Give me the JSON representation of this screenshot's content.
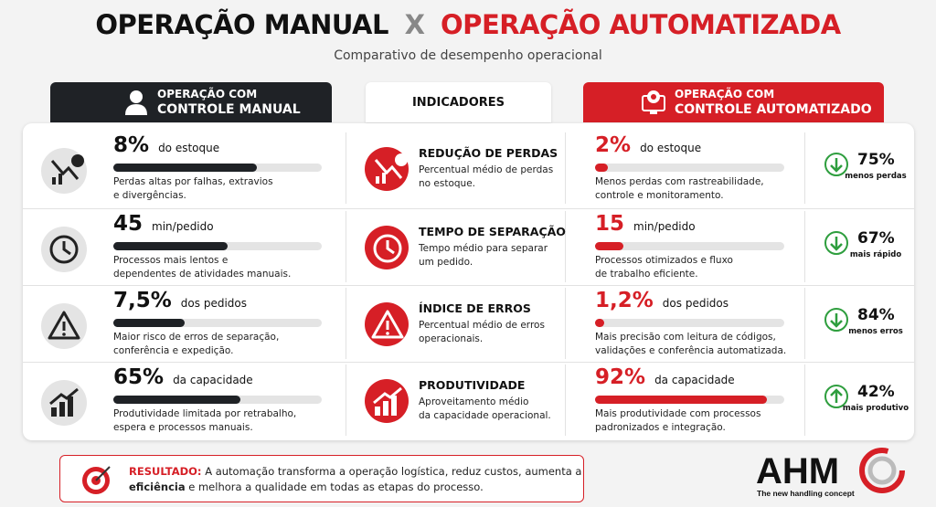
{
  "header": {
    "title_left": "OPERAÇÃO MANUAL",
    "title_x": "X",
    "title_right": "OPERAÇÃO AUTOMATIZADA",
    "subtitle": "Comparativo de desempenho operacional"
  },
  "columns": {
    "manual": [
      "OPERAÇÃO COM",
      "CONTROLE MANUAL"
    ],
    "indicators": "INDICADORES",
    "automated": [
      "OPERAÇÃO COM",
      "CONTROLE AUTOMATIZADO"
    ]
  },
  "rows": [
    {
      "manual": {
        "value": "8%",
        "unit": "do estoque",
        "description": [
          "Perdas altas por falhas, extravios",
          "e divergências."
        ]
      },
      "indicator": {
        "title": "REDUÇÃO DE PERDAS",
        "description": [
          "Percentual médio de perdas",
          "no estoque."
        ]
      },
      "automated": {
        "value": "2%",
        "unit": "do estoque",
        "description": [
          "Menos perdas com rastreabilidade,",
          "controle e monitoramento."
        ]
      },
      "gain": {
        "value": "75%",
        "label": "menos perdas"
      }
    },
    {
      "manual": {
        "value": "45",
        "unit": "min/pedido",
        "description": [
          "Processos mais lentos e",
          "dependentes de atividades manuais."
        ]
      },
      "indicator": {
        "title": "TEMPO DE SEPARAÇÃO",
        "description": [
          "Tempo médio para separar",
          "um pedido."
        ]
      },
      "automated": {
        "value": "15",
        "unit": "min/pedido",
        "description": [
          "Processos otimizados e fluxo",
          "de trabalho eficiente."
        ]
      },
      "gain": {
        "value": "67%",
        "label": "mais rápido"
      }
    },
    {
      "manual": {
        "value": "7,5%",
        "unit": "dos pedidos",
        "description": [
          "Maior risco de erros de separação,",
          "conferência e expedição."
        ]
      },
      "indicator": {
        "title": "ÍNDICE DE ERROS",
        "description": [
          "Percentual médio de erros",
          "operacionais."
        ]
      },
      "automated": {
        "value": "1,2%",
        "unit": "dos pedidos",
        "description": [
          "Mais precisão com leitura de códigos,",
          "validações e conferência automatizada."
        ]
      },
      "gain": {
        "value": "84%",
        "label": "menos erros"
      }
    },
    {
      "manual": {
        "value": "65%",
        "unit": "da capacidade",
        "description": [
          "Produtividade limitada por retrabalho,",
          "espera e processos manuais."
        ]
      },
      "indicator": {
        "title": "PRODUTIVIDADE",
        "description": [
          "Aproveitamento médio",
          "da capacidade operacional."
        ]
      },
      "automated": {
        "value": "92%",
        "unit": "da capacidade",
        "description": [
          "Mais produtividade com processos",
          "padronizados e integração."
        ]
      },
      "gain": {
        "value": "42%",
        "label": "mais produtivo"
      }
    }
  ],
  "result": {
    "label": "RESULTADO:",
    "line1": "A automação transforma a operação logística, reduz custos, aumenta a",
    "bold": "eficiência",
    "line2": "e melhora a qualidade em todas as etapas do processo."
  },
  "logo": {
    "name": "AHM",
    "tagline": "The new handling concept"
  }
}
